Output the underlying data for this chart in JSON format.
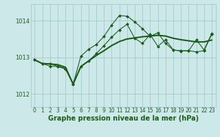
{
  "title": "Graphe pression niveau de la mer (hPa)",
  "background_color": "#cde8e8",
  "grid_color": "#aacccc",
  "line_color": "#1a5c1a",
  "xlim": [
    -0.5,
    23.5
  ],
  "ylim": [
    1011.65,
    1014.45
  ],
  "yticks": [
    1012,
    1013,
    1014
  ],
  "xticks": [
    0,
    1,
    2,
    3,
    4,
    5,
    6,
    7,
    8,
    9,
    10,
    11,
    12,
    13,
    14,
    15,
    16,
    17,
    18,
    19,
    20,
    21,
    22,
    23
  ],
  "series1_x": [
    0,
    1,
    2,
    3,
    4,
    5,
    6,
    7,
    8,
    9,
    10,
    11,
    12,
    13,
    14,
    15,
    16,
    17,
    18,
    19,
    20,
    21,
    22,
    23
  ],
  "series1_y": [
    1012.93,
    1012.83,
    1012.82,
    1012.8,
    1012.73,
    1012.27,
    1012.75,
    1012.9,
    1013.05,
    1013.18,
    1013.32,
    1013.43,
    1013.5,
    1013.53,
    1013.56,
    1013.58,
    1013.6,
    1013.58,
    1013.52,
    1013.48,
    1013.45,
    1013.42,
    1013.42,
    1013.47
  ],
  "series2_x": [
    0,
    1,
    2,
    3,
    4,
    5,
    6,
    7,
    8,
    9,
    10,
    11,
    12,
    13,
    14,
    15,
    16,
    17,
    18,
    19,
    20,
    21,
    22,
    23
  ],
  "series2_y": [
    1012.93,
    1012.83,
    1012.82,
    1012.76,
    1012.7,
    1012.27,
    1013.03,
    1013.22,
    1013.35,
    1013.57,
    1013.88,
    1014.14,
    1014.12,
    1013.97,
    1013.78,
    1013.57,
    1013.67,
    1013.38,
    1013.2,
    1013.17,
    1013.18,
    1013.15,
    1013.18,
    1013.63
  ],
  "series3_x": [
    0,
    1,
    2,
    3,
    4,
    5,
    6,
    7,
    8,
    9,
    10,
    11,
    12,
    13,
    14,
    15,
    16,
    17,
    18,
    19,
    20,
    21,
    22,
    23
  ],
  "series3_y": [
    1012.93,
    1012.83,
    1012.76,
    1012.75,
    1012.68,
    1012.27,
    1012.75,
    1012.9,
    1013.1,
    1013.32,
    1013.55,
    1013.75,
    1013.9,
    1013.52,
    1013.38,
    1013.62,
    1013.3,
    1013.48,
    1013.2,
    1013.18,
    1013.18,
    1013.48,
    1013.2,
    1013.65
  ],
  "ylabel_fontsize": 6.0,
  "xlabel_fontsize": 7.0,
  "tick_fontsize": 5.5
}
